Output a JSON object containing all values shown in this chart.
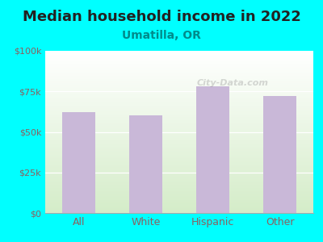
{
  "title": "Median household income in 2022",
  "subtitle": "Umatilla, OR",
  "categories": [
    "All",
    "White",
    "Hispanic",
    "Other"
  ],
  "values": [
    62000,
    60000,
    78000,
    72000
  ],
  "bar_color": "#C9B8D8",
  "background_color": "#00FFFF",
  "plot_bg_top": "#FFFFFF",
  "plot_bg_bottom": "#D4ECC8",
  "title_color": "#222222",
  "subtitle_color": "#008B8B",
  "tick_label_color": "#8B6060",
  "ylim": [
    0,
    100000
  ],
  "yticks": [
    0,
    25000,
    50000,
    75000,
    100000
  ],
  "ytick_labels": [
    "$0",
    "$25k",
    "$50k",
    "$75k",
    "$100k"
  ],
  "title_fontsize": 13,
  "subtitle_fontsize": 10,
  "watermark": "City-Data.com"
}
